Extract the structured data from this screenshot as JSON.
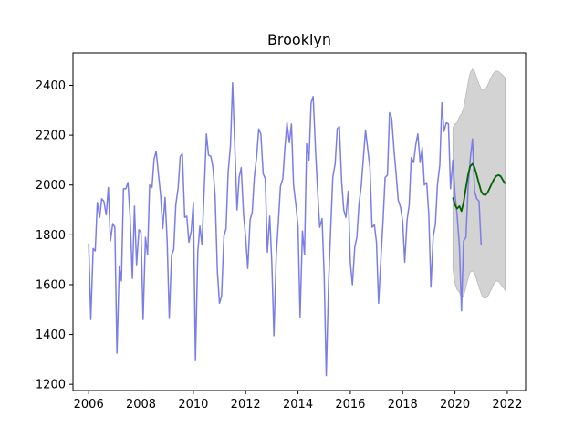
{
  "chart_data": {
    "type": "line",
    "title": "Brooklyn",
    "xlabel": "",
    "ylabel": "",
    "xlim": [
      2005.4,
      2022.7
    ],
    "ylim": [
      1175,
      2530
    ],
    "xticks": [
      2006,
      2008,
      2010,
      2012,
      2014,
      2016,
      2018,
      2020,
      2022
    ],
    "yticks": [
      1200,
      1400,
      1600,
      1800,
      2000,
      2200,
      2400
    ],
    "grid": false,
    "legend": "none",
    "colors": {
      "observed": "#7b7ee6",
      "forecast": "#006400",
      "interval": "#d3d3d3",
      "interval_edge": "#b8b8b8"
    },
    "series": [
      {
        "role": "observed",
        "points": [
          [
            2006.0,
            1765
          ],
          [
            2006.08,
            1460
          ],
          [
            2006.17,
            1745
          ],
          [
            2006.25,
            1735
          ],
          [
            2006.33,
            1930
          ],
          [
            2006.42,
            1870
          ],
          [
            2006.5,
            1945
          ],
          [
            2006.58,
            1935
          ],
          [
            2006.67,
            1880
          ],
          [
            2006.75,
            1990
          ],
          [
            2006.83,
            1775
          ],
          [
            2006.92,
            1845
          ],
          [
            2007.0,
            1830
          ],
          [
            2007.08,
            1325
          ],
          [
            2007.17,
            1675
          ],
          [
            2007.25,
            1615
          ],
          [
            2007.33,
            1985
          ],
          [
            2007.42,
            1985
          ],
          [
            2007.5,
            2010
          ],
          [
            2007.58,
            1880
          ],
          [
            2007.67,
            1625
          ],
          [
            2007.75,
            1915
          ],
          [
            2007.83,
            1680
          ],
          [
            2007.92,
            1820
          ],
          [
            2008.0,
            1810
          ],
          [
            2008.08,
            1460
          ],
          [
            2008.17,
            1790
          ],
          [
            2008.25,
            1720
          ],
          [
            2008.33,
            2000
          ],
          [
            2008.42,
            1990
          ],
          [
            2008.5,
            2105
          ],
          [
            2008.58,
            2135
          ],
          [
            2008.67,
            2040
          ],
          [
            2008.75,
            1960
          ],
          [
            2008.83,
            1825
          ],
          [
            2008.92,
            1950
          ],
          [
            2009.0,
            1775
          ],
          [
            2009.08,
            1465
          ],
          [
            2009.17,
            1720
          ],
          [
            2009.25,
            1740
          ],
          [
            2009.33,
            1920
          ],
          [
            2009.42,
            1990
          ],
          [
            2009.5,
            2115
          ],
          [
            2009.58,
            2125
          ],
          [
            2009.67,
            1870
          ],
          [
            2009.75,
            1875
          ],
          [
            2009.83,
            1770
          ],
          [
            2009.92,
            1815
          ],
          [
            2010.0,
            1930
          ],
          [
            2010.08,
            1295
          ],
          [
            2010.17,
            1730
          ],
          [
            2010.25,
            1835
          ],
          [
            2010.33,
            1760
          ],
          [
            2010.42,
            1995
          ],
          [
            2010.5,
            2205
          ],
          [
            2010.58,
            2120
          ],
          [
            2010.67,
            2115
          ],
          [
            2010.75,
            2070
          ],
          [
            2010.83,
            1960
          ],
          [
            2010.92,
            1650
          ],
          [
            2011.0,
            1525
          ],
          [
            2011.08,
            1555
          ],
          [
            2011.17,
            1795
          ],
          [
            2011.25,
            1825
          ],
          [
            2011.33,
            2050
          ],
          [
            2011.42,
            2160
          ],
          [
            2011.5,
            2410
          ],
          [
            2011.58,
            2170
          ],
          [
            2011.67,
            1900
          ],
          [
            2011.75,
            2030
          ],
          [
            2011.83,
            2070
          ],
          [
            2011.92,
            1880
          ],
          [
            2012.0,
            1790
          ],
          [
            2012.08,
            1665
          ],
          [
            2012.17,
            1860
          ],
          [
            2012.25,
            1890
          ],
          [
            2012.33,
            2030
          ],
          [
            2012.42,
            2115
          ],
          [
            2012.5,
            2225
          ],
          [
            2012.58,
            2205
          ],
          [
            2012.67,
            2045
          ],
          [
            2012.75,
            2025
          ],
          [
            2012.83,
            1730
          ],
          [
            2012.92,
            1875
          ],
          [
            2013.0,
            1685
          ],
          [
            2013.08,
            1395
          ],
          [
            2013.17,
            1720
          ],
          [
            2013.25,
            1850
          ],
          [
            2013.33,
            1995
          ],
          [
            2013.42,
            2025
          ],
          [
            2013.5,
            2150
          ],
          [
            2013.58,
            2250
          ],
          [
            2013.67,
            2170
          ],
          [
            2013.75,
            2245
          ],
          [
            2013.83,
            2000
          ],
          [
            2013.92,
            1920
          ],
          [
            2014.0,
            1835
          ],
          [
            2014.08,
            1470
          ],
          [
            2014.17,
            1815
          ],
          [
            2014.25,
            1720
          ],
          [
            2014.33,
            2165
          ],
          [
            2014.42,
            2100
          ],
          [
            2014.5,
            2330
          ],
          [
            2014.58,
            2355
          ],
          [
            2014.67,
            2140
          ],
          [
            2014.75,
            1975
          ],
          [
            2014.83,
            1830
          ],
          [
            2014.92,
            1865
          ],
          [
            2015.0,
            1640
          ],
          [
            2015.08,
            1235
          ],
          [
            2015.17,
            1610
          ],
          [
            2015.25,
            1825
          ],
          [
            2015.33,
            2030
          ],
          [
            2015.42,
            2085
          ],
          [
            2015.5,
            2225
          ],
          [
            2015.58,
            2235
          ],
          [
            2015.67,
            2010
          ],
          [
            2015.75,
            1900
          ],
          [
            2015.83,
            1870
          ],
          [
            2015.92,
            1975
          ],
          [
            2016.0,
            1690
          ],
          [
            2016.08,
            1600
          ],
          [
            2016.17,
            1750
          ],
          [
            2016.25,
            1790
          ],
          [
            2016.33,
            1920
          ],
          [
            2016.42,
            2000
          ],
          [
            2016.5,
            2110
          ],
          [
            2016.58,
            2220
          ],
          [
            2016.67,
            2140
          ],
          [
            2016.75,
            2070
          ],
          [
            2016.83,
            1830
          ],
          [
            2016.92,
            1840
          ],
          [
            2017.0,
            1770
          ],
          [
            2017.08,
            1525
          ],
          [
            2017.17,
            1705
          ],
          [
            2017.25,
            1855
          ],
          [
            2017.33,
            2030
          ],
          [
            2017.42,
            2040
          ],
          [
            2017.5,
            2290
          ],
          [
            2017.58,
            2270
          ],
          [
            2017.67,
            2140
          ],
          [
            2017.75,
            2045
          ],
          [
            2017.83,
            1940
          ],
          [
            2017.92,
            1910
          ],
          [
            2018.0,
            1855
          ],
          [
            2018.08,
            1690
          ],
          [
            2018.17,
            1860
          ],
          [
            2018.25,
            1920
          ],
          [
            2018.33,
            2110
          ],
          [
            2018.42,
            2090
          ],
          [
            2018.5,
            2160
          ],
          [
            2018.58,
            2205
          ],
          [
            2018.67,
            2090
          ],
          [
            2018.75,
            2150
          ],
          [
            2018.83,
            2000
          ],
          [
            2018.92,
            2010
          ],
          [
            2019.0,
            1880
          ],
          [
            2019.08,
            1590
          ],
          [
            2019.17,
            1795
          ],
          [
            2019.25,
            1840
          ],
          [
            2019.33,
            2000
          ],
          [
            2019.42,
            2080
          ],
          [
            2019.5,
            2330
          ],
          [
            2019.58,
            2215
          ],
          [
            2019.67,
            2250
          ],
          [
            2019.75,
            2245
          ],
          [
            2019.83,
            1985
          ],
          [
            2019.92,
            2100
          ],
          [
            2020.0,
            1965
          ],
          [
            2020.08,
            1880
          ],
          [
            2020.17,
            1755
          ],
          [
            2020.25,
            1495
          ],
          [
            2020.33,
            1775
          ],
          [
            2020.42,
            1790
          ],
          [
            2020.5,
            1985
          ],
          [
            2020.58,
            2100
          ],
          [
            2020.67,
            2185
          ],
          [
            2020.75,
            1975
          ],
          [
            2020.83,
            1945
          ],
          [
            2020.92,
            1935
          ],
          [
            2021.0,
            1760
          ]
        ]
      },
      {
        "role": "forecast",
        "points": [
          [
            2019.92,
            1950
          ],
          [
            2020.0,
            1920
          ],
          [
            2020.08,
            1905
          ],
          [
            2020.17,
            1915
          ],
          [
            2020.25,
            1895
          ],
          [
            2020.33,
            1930
          ],
          [
            2020.42,
            1990
          ],
          [
            2020.5,
            2040
          ],
          [
            2020.58,
            2075
          ],
          [
            2020.67,
            2085
          ],
          [
            2020.75,
            2070
          ],
          [
            2020.83,
            2040
          ],
          [
            2020.92,
            2005
          ],
          [
            2021.0,
            1975
          ],
          [
            2021.08,
            1962
          ],
          [
            2021.17,
            1960
          ],
          [
            2021.25,
            1970
          ],
          [
            2021.33,
            1988
          ],
          [
            2021.42,
            2008
          ],
          [
            2021.5,
            2025
          ],
          [
            2021.58,
            2036
          ],
          [
            2021.67,
            2040
          ],
          [
            2021.75,
            2035
          ],
          [
            2021.83,
            2020
          ],
          [
            2021.92,
            2005
          ]
        ]
      }
    ],
    "interval": {
      "x": [
        2019.92,
        2020.0,
        2020.08,
        2020.17,
        2020.25,
        2020.33,
        2020.42,
        2020.5,
        2020.58,
        2020.67,
        2020.75,
        2020.83,
        2020.92,
        2021.0,
        2021.08,
        2021.17,
        2021.25,
        2021.33,
        2021.42,
        2021.5,
        2021.58,
        2021.67,
        2021.75,
        2021.83,
        2021.92
      ],
      "upper": [
        2230,
        2245,
        2250,
        2275,
        2285,
        2310,
        2360,
        2410,
        2450,
        2465,
        2455,
        2430,
        2405,
        2385,
        2380,
        2385,
        2400,
        2420,
        2440,
        2452,
        2458,
        2455,
        2448,
        2440,
        2430
      ],
      "lower": [
        1665,
        1605,
        1580,
        1570,
        1545,
        1555,
        1590,
        1625,
        1650,
        1655,
        1645,
        1620,
        1590,
        1565,
        1548,
        1545,
        1552,
        1568,
        1588,
        1605,
        1615,
        1612,
        1602,
        1590,
        1578
      ]
    }
  }
}
